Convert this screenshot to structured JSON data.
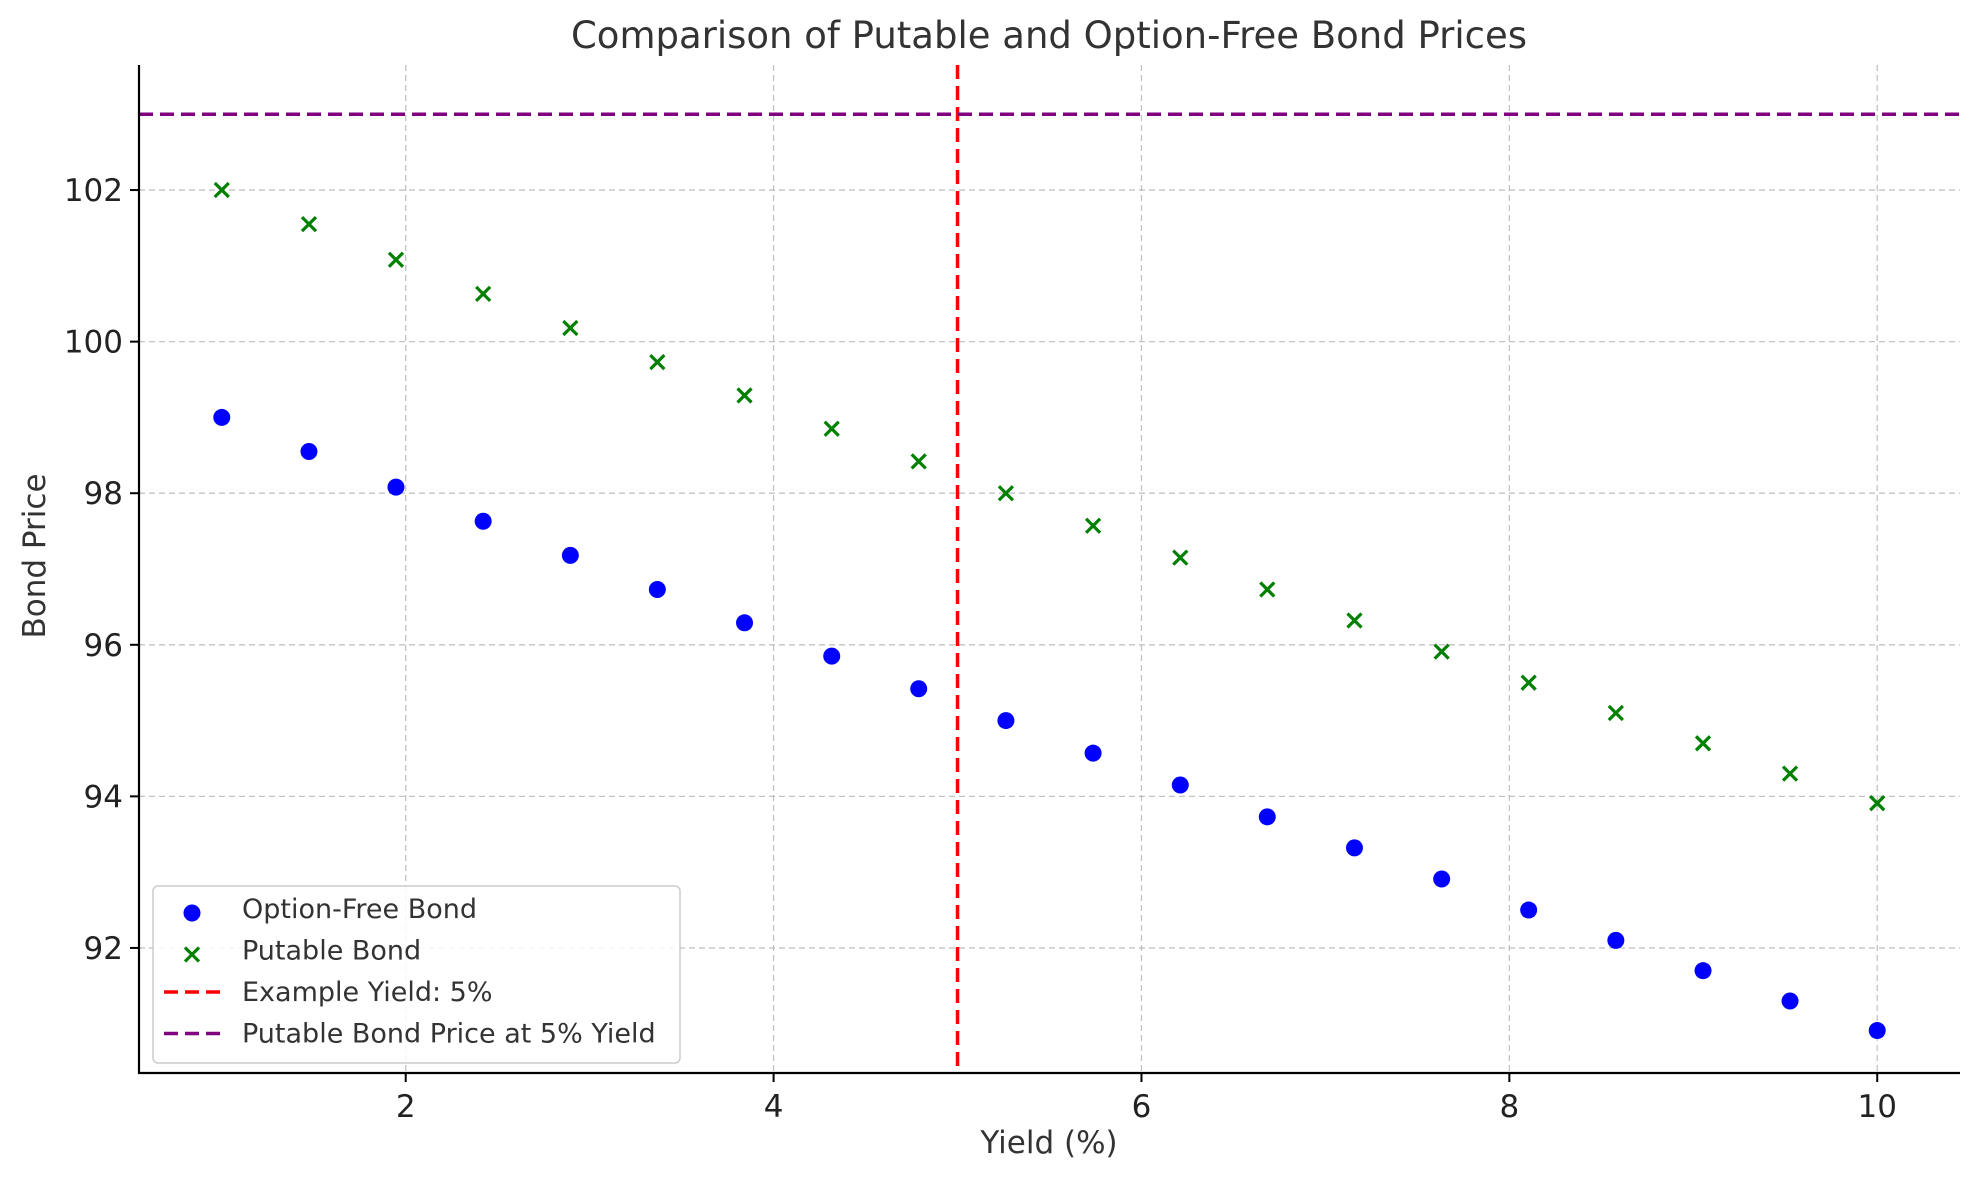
{
  "chart_data": {
    "type": "scatter",
    "title": "Comparison of Putable and Option-Free Bond Prices",
    "xlabel": "Yield (%)",
    "ylabel": "Bond Price",
    "xlim": [
      0.55,
      10.45
    ],
    "ylim": [
      90.35,
      103.65
    ],
    "xticks": [
      2,
      4,
      6,
      8,
      10
    ],
    "yticks": [
      92,
      94,
      96,
      98,
      100,
      102
    ],
    "grid": true,
    "legend_position": "lower-left",
    "x": [
      1.0,
      1.474,
      1.947,
      2.421,
      2.895,
      3.368,
      3.842,
      4.316,
      4.789,
      5.263,
      5.737,
      6.211,
      6.684,
      7.158,
      7.632,
      8.105,
      8.579,
      9.053,
      9.526,
      10.0
    ],
    "series": [
      {
        "name": "Option-Free Bond",
        "marker": "circle",
        "color": "#0000ff",
        "values": [
          99.0,
          98.55,
          98.08,
          97.63,
          97.18,
          96.73,
          96.29,
          95.85,
          95.42,
          95.0,
          94.57,
          94.15,
          93.73,
          93.32,
          92.91,
          92.5,
          92.1,
          91.7,
          91.3,
          90.91
        ]
      },
      {
        "name": "Putable Bond",
        "marker": "x",
        "color": "#008000",
        "values": [
          102.0,
          101.55,
          101.08,
          100.63,
          100.18,
          99.73,
          99.29,
          98.85,
          98.42,
          98.0,
          97.57,
          97.15,
          96.73,
          96.32,
          95.91,
          95.5,
          95.1,
          94.7,
          94.3,
          93.91
        ]
      }
    ],
    "reference_lines": [
      {
        "name": "Example Yield: 5%",
        "orientation": "vertical",
        "value": 5,
        "color": "#ff0000",
        "style": "dashed"
      },
      {
        "name": "Putable Bond Price at 5% Yield",
        "orientation": "horizontal",
        "value": 103,
        "color": "#800080",
        "style": "dashed"
      }
    ]
  }
}
